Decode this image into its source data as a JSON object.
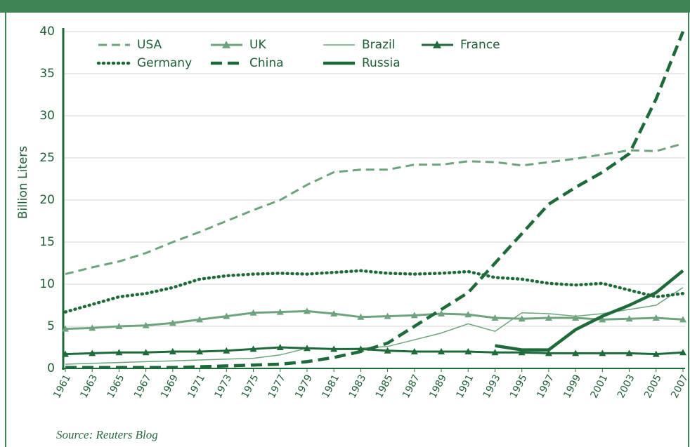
{
  "chart_data": {
    "type": "line",
    "y_label": "Billion Liters",
    "source": "Source: Reuters Blog",
    "x": [
      1961,
      1963,
      1965,
      1967,
      1969,
      1971,
      1973,
      1975,
      1977,
      1979,
      1981,
      1983,
      1985,
      1987,
      1989,
      1991,
      1993,
      1995,
      1997,
      1999,
      2001,
      2003,
      2005,
      2007
    ],
    "xlim": [
      1961,
      2007
    ],
    "xticks": [
      1961,
      1963,
      1965,
      1967,
      1969,
      1971,
      1973,
      1975,
      1977,
      1979,
      1981,
      1983,
      1985,
      1987,
      1989,
      1991,
      1993,
      1995,
      1997,
      1999,
      2001,
      2003,
      2005,
      2007
    ],
    "ylim": [
      0,
      40
    ],
    "yticks": [
      0,
      5,
      10,
      15,
      20,
      25,
      30,
      35,
      40
    ],
    "grid": true,
    "series": [
      {
        "name": "USA",
        "color": "#6ea47d",
        "dash": "dashed",
        "weight": "medium",
        "values": [
          11.2,
          12,
          12.7,
          13.7,
          15,
          16.2,
          17.5,
          18.8,
          20,
          21.8,
          23.3,
          23.6,
          23.6,
          24.2,
          24.2,
          24.6,
          24.5,
          24.1,
          24.5,
          24.9,
          25.4,
          25.9,
          25.8,
          26.7
        ]
      },
      {
        "name": "UK",
        "color": "#6ea47d",
        "dash": "solid",
        "weight": "medium",
        "marker": "triangle",
        "values": [
          4.7,
          4.8,
          5.0,
          5.1,
          5.4,
          5.8,
          6.2,
          6.6,
          6.7,
          6.8,
          6.5,
          6.1,
          6.2,
          6.3,
          6.5,
          6.4,
          6.0,
          5.9,
          6.0,
          6.0,
          5.8,
          5.9,
          6.0,
          5.8
        ]
      },
      {
        "name": "Brazil",
        "color": "#6ea47d",
        "dash": "solid",
        "weight": "thin",
        "values": [
          0.5,
          0.6,
          0.7,
          0.8,
          0.9,
          1.0,
          1.1,
          1.2,
          1.6,
          2.4,
          2.3,
          2.4,
          2.6,
          3.4,
          4.2,
          5.3,
          4.4,
          6.6,
          6.5,
          6.2,
          6.5,
          7.0,
          7.5,
          9.6
        ]
      },
      {
        "name": "France",
        "color": "#1e6b3a",
        "dash": "solid",
        "weight": "medium",
        "marker": "triangle",
        "values": [
          1.7,
          1.8,
          1.9,
          1.9,
          2.0,
          2.0,
          2.1,
          2.3,
          2.5,
          2.4,
          2.3,
          2.3,
          2.1,
          2.0,
          2.0,
          2.0,
          1.9,
          1.9,
          1.8,
          1.8,
          1.8,
          1.8,
          1.7,
          1.9
        ]
      },
      {
        "name": "Germany",
        "color": "#1e6b3a",
        "dash": "dotted",
        "weight": "bold",
        "values": [
          6.7,
          7.6,
          8.5,
          8.9,
          9.6,
          10.6,
          11,
          11.2,
          11.3,
          11.2,
          11.4,
          11.6,
          11.3,
          11.2,
          11.3,
          11.5,
          10.8,
          10.6,
          10.1,
          9.9,
          10.1,
          9.3,
          8.5,
          8.9
        ]
      },
      {
        "name": "China",
        "color": "#1e6b3a",
        "dash": "dashed",
        "weight": "bold",
        "values": [
          0.1,
          0.1,
          0.1,
          0.1,
          0.1,
          0.2,
          0.3,
          0.4,
          0.5,
          0.8,
          1.3,
          2.0,
          3.0,
          5.0,
          7.0,
          9.0,
          12.5,
          16,
          19.5,
          21.5,
          23.3,
          25.5,
          32,
          40
        ]
      },
      {
        "name": "Russia",
        "color": "#1e6b3a",
        "dash": "solid",
        "weight": "bold",
        "values": [
          null,
          null,
          null,
          null,
          null,
          null,
          null,
          null,
          null,
          null,
          null,
          null,
          null,
          null,
          null,
          null,
          2.7,
          2.2,
          2.2,
          4.6,
          6.2,
          7.5,
          9.0,
          11.6
        ]
      }
    ]
  }
}
